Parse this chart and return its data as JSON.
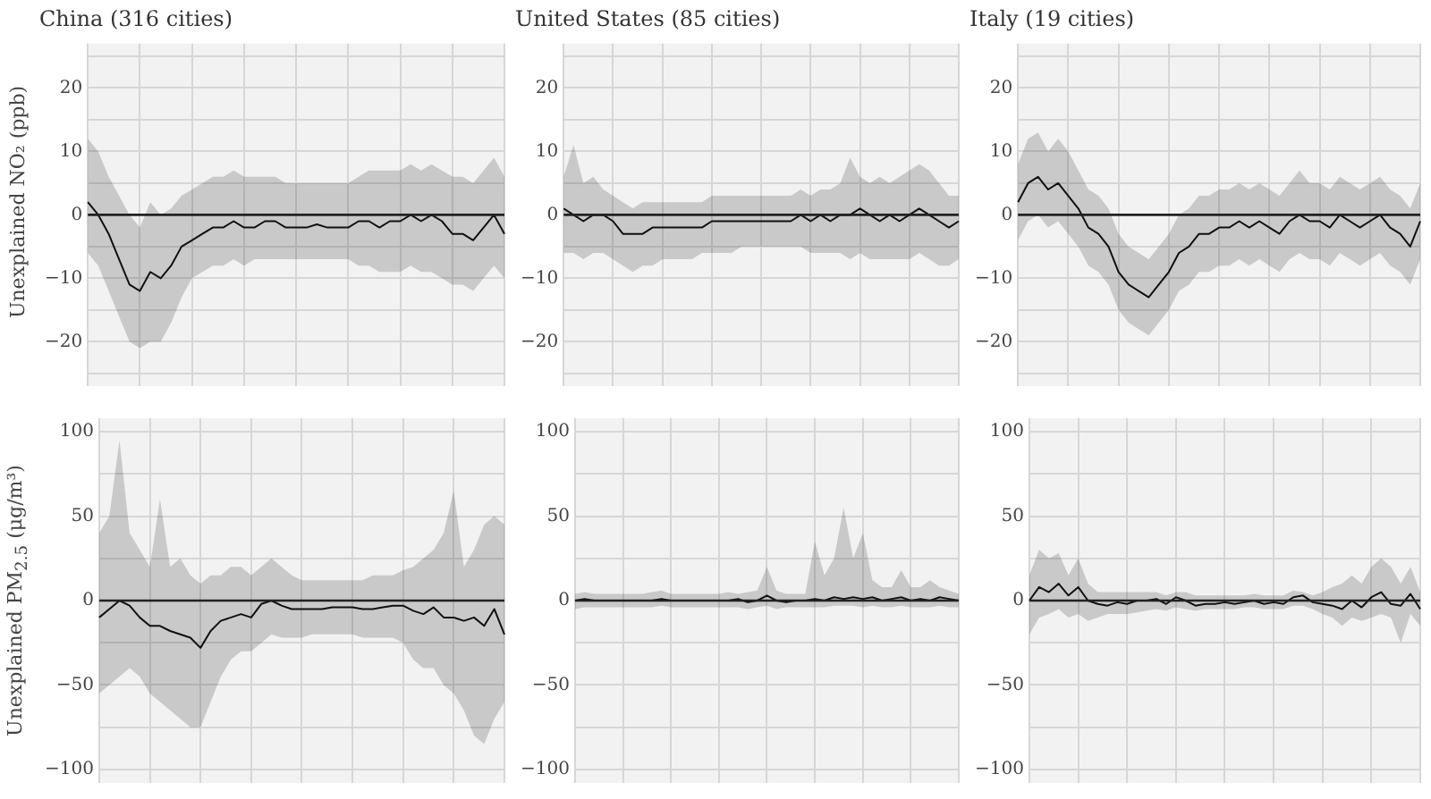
{
  "chart_data": [
    {
      "type": "line",
      "title": "China (316 cities)",
      "ylabel": "Unexplained NO₂ (ppb)",
      "categories": [
        null,
        null,
        null,
        null,
        null,
        null,
        null,
        null,
        null,
        null,
        null,
        null,
        null,
        null,
        null,
        null,
        null,
        null,
        null,
        null,
        null,
        null,
        null,
        null,
        null,
        null,
        null,
        null,
        null,
        null,
        null,
        null,
        null,
        null,
        null,
        null,
        null,
        null,
        null,
        null,
        null
      ],
      "ylim": [
        -27,
        27
      ],
      "yticks": [
        {
          "value": -25,
          "label": null
        },
        -20,
        {
          "value": -15,
          "label": null
        },
        -10,
        {
          "value": -5,
          "label": null
        },
        0,
        {
          "value": 5,
          "label": null
        },
        10,
        {
          "value": 15,
          "label": null
        },
        20,
        {
          "value": 25,
          "label": null
        }
      ],
      "grid": true,
      "tick_labels": "y",
      "ref_lines": [
        {
          "axis": "y",
          "value": 0,
          "color": "#222222"
        }
      ],
      "series": [
        {
          "color": "#111111",
          "values": [
            2,
            0,
            -3,
            -7,
            -11,
            -12,
            -9,
            -10,
            -8,
            -5,
            -4,
            -3,
            -2,
            -2,
            -1,
            -2,
            -2,
            -1,
            -1,
            -2,
            -2,
            -2,
            -1.5,
            -2,
            -2,
            -2,
            -1,
            -1,
            -2,
            -1,
            -1,
            0,
            -1,
            0,
            -1,
            -3,
            -3,
            -4,
            -2,
            0,
            -3
          ],
          "lower": [
            -6,
            -8,
            -12,
            -16,
            -20,
            -21,
            -20,
            -20,
            -17,
            -13,
            -10,
            -9,
            -8,
            -8,
            -7,
            -8,
            -7,
            -7,
            -7,
            -7,
            -7,
            -7,
            -7,
            -7,
            -7,
            -7,
            -8,
            -8,
            -9,
            -9,
            -9,
            -8,
            -9,
            -9,
            -10,
            -11,
            -11,
            -12,
            -10,
            -8,
            -10
          ],
          "upper": [
            12,
            10,
            6,
            3,
            0,
            -2,
            2,
            0,
            1,
            3,
            4,
            5,
            6,
            6,
            7,
            6,
            6,
            6,
            6,
            5,
            5,
            5,
            5,
            5,
            5,
            5,
            6,
            7,
            7,
            7,
            7,
            8,
            7,
            8,
            7,
            6,
            6,
            5,
            7,
            9,
            6
          ]
        }
      ]
    },
    {
      "type": "line",
      "title": "United States (85 cities)",
      "categories": [
        null,
        null,
        null,
        null,
        null,
        null,
        null,
        null,
        null,
        null,
        null,
        null,
        null,
        null,
        null,
        null,
        null,
        null,
        null,
        null,
        null,
        null,
        null,
        null,
        null,
        null,
        null,
        null,
        null,
        null,
        null,
        null,
        null,
        null,
        null,
        null,
        null,
        null,
        null,
        null,
        null
      ],
      "ylim": [
        -27,
        27
      ],
      "yticks": [
        {
          "value": -25,
          "label": null
        },
        -20,
        {
          "value": -15,
          "label": null
        },
        -10,
        {
          "value": -5,
          "label": null
        },
        0,
        {
          "value": 5,
          "label": null
        },
        10,
        {
          "value": 15,
          "label": null
        },
        20,
        {
          "value": 25,
          "label": null
        }
      ],
      "grid": true,
      "tick_labels": "y",
      "ref_lines": [
        {
          "axis": "y",
          "value": 0,
          "color": "#222222"
        }
      ],
      "series": [
        {
          "color": "#111111",
          "values": [
            1,
            0,
            -1,
            0,
            0,
            -1,
            -3,
            -3,
            -3,
            -2,
            -2,
            -2,
            -2,
            -2,
            -2,
            -1,
            -1,
            -1,
            -1,
            -1,
            -1,
            -1,
            -1,
            -1,
            0,
            -1,
            0,
            -1,
            0,
            0,
            1,
            0,
            -1,
            0,
            -1,
            0,
            1,
            0,
            -1,
            -2,
            -1
          ],
          "lower": [
            -6,
            -6,
            -7,
            -6,
            -6,
            -7,
            -8,
            -9,
            -8,
            -8,
            -7,
            -7,
            -7,
            -7,
            -6,
            -6,
            -6,
            -6,
            -5,
            -5,
            -5,
            -5,
            -5,
            -5,
            -5,
            -6,
            -6,
            -6,
            -6,
            -7,
            -6,
            -7,
            -7,
            -7,
            -7,
            -7,
            -6,
            -7,
            -8,
            -8,
            -7
          ],
          "upper": [
            6,
            11,
            5,
            6,
            4,
            3,
            2,
            1,
            2,
            2,
            2,
            2,
            2,
            2,
            2,
            3,
            3,
            3,
            3,
            3,
            3,
            3,
            3,
            3,
            4,
            3,
            4,
            4,
            5,
            9,
            6,
            5,
            6,
            5,
            6,
            7,
            8,
            7,
            5,
            3,
            3
          ]
        }
      ]
    },
    {
      "type": "line",
      "title": "Italy (19 cities)",
      "categories": [
        null,
        null,
        null,
        null,
        null,
        null,
        null,
        null,
        null,
        null,
        null,
        null,
        null,
        null,
        null,
        null,
        null,
        null,
        null,
        null,
        null,
        null,
        null,
        null,
        null,
        null,
        null,
        null,
        null,
        null,
        null,
        null,
        null,
        null,
        null,
        null,
        null,
        null,
        null,
        null,
        null
      ],
      "ylim": [
        -27,
        27
      ],
      "yticks": [
        {
          "value": -25,
          "label": null
        },
        -20,
        {
          "value": -15,
          "label": null
        },
        -10,
        {
          "value": -5,
          "label": null
        },
        0,
        {
          "value": 5,
          "label": null
        },
        10,
        {
          "value": 15,
          "label": null
        },
        20,
        {
          "value": 25,
          "label": null
        }
      ],
      "grid": true,
      "tick_labels": "y",
      "ref_lines": [
        {
          "axis": "y",
          "value": 0,
          "color": "#222222"
        }
      ],
      "series": [
        {
          "color": "#111111",
          "values": [
            2,
            5,
            6,
            4,
            5,
            3,
            1,
            -2,
            -3,
            -5,
            -9,
            -11,
            -12,
            -13,
            -11,
            -9,
            -6,
            -5,
            -3,
            -3,
            -2,
            -2,
            -1,
            -2,
            -1,
            -2,
            -3,
            -1,
            0,
            -1,
            -1,
            -2,
            0,
            -1,
            -2,
            -1,
            0,
            -2,
            -3,
            -5,
            -1
          ],
          "lower": [
            -4,
            -1,
            0,
            -2,
            -1,
            -3,
            -5,
            -8,
            -9,
            -11,
            -15,
            -17,
            -18,
            -19,
            -17,
            -15,
            -12,
            -11,
            -9,
            -9,
            -8,
            -8,
            -7,
            -8,
            -7,
            -8,
            -9,
            -7,
            -6,
            -7,
            -7,
            -8,
            -6,
            -7,
            -8,
            -7,
            -6,
            -8,
            -9,
            -11,
            -7
          ],
          "upper": [
            8,
            12,
            13,
            10,
            12,
            10,
            7,
            4,
            3,
            1,
            -3,
            -5,
            -6,
            -7,
            -5,
            -3,
            0,
            1,
            3,
            3,
            4,
            4,
            5,
            4,
            5,
            4,
            3,
            5,
            7,
            5,
            5,
            4,
            6,
            5,
            4,
            5,
            6,
            4,
            3,
            1,
            5
          ]
        }
      ]
    },
    {
      "type": "line",
      "ylabel": "Unexplained PM$_{2.5}$ (μg/m³)",
      "categories": [
        null,
        null,
        null,
        null,
        null,
        null,
        null,
        null,
        null,
        null,
        null,
        null,
        null,
        null,
        null,
        null,
        null,
        null,
        null,
        null,
        null,
        null,
        null,
        null,
        null,
        null,
        null,
        null,
        null,
        null,
        null,
        null,
        null,
        null,
        null,
        null,
        null,
        null,
        null,
        null,
        null
      ],
      "ylim": [
        -108,
        108
      ],
      "yticks": [
        -100,
        {
          "value": -75,
          "label": null
        },
        -50,
        {
          "value": -25,
          "label": null
        },
        0,
        {
          "value": 25,
          "label": null
        },
        50,
        {
          "value": 75,
          "label": null
        },
        100
      ],
      "grid": true,
      "tick_labels": "y",
      "ref_lines": [
        {
          "axis": "y",
          "value": 0,
          "color": "#222222"
        }
      ],
      "series": [
        {
          "color": "#111111",
          "values": [
            -10,
            -5,
            0,
            -3,
            -10,
            -15,
            -15,
            -18,
            -20,
            -22,
            -28,
            -18,
            -12,
            -10,
            -8,
            -10,
            -2,
            0,
            -3,
            -5,
            -5,
            -5,
            -5,
            -4,
            -4,
            -4,
            -5,
            -5,
            -4,
            -3,
            -3,
            -6,
            -8,
            -4,
            -10,
            -10,
            -12,
            -10,
            -15,
            -5,
            -20
          ],
          "lower": [
            -55,
            -50,
            -45,
            -40,
            -45,
            -55,
            -60,
            -65,
            -70,
            -75,
            -75,
            -60,
            -45,
            -35,
            -30,
            -30,
            -25,
            -20,
            -22,
            -22,
            -22,
            -20,
            -20,
            -20,
            -20,
            -20,
            -22,
            -22,
            -22,
            -22,
            -25,
            -35,
            -40,
            -40,
            -50,
            -55,
            -65,
            -80,
            -85,
            -70,
            -60
          ],
          "upper": [
            40,
            50,
            95,
            40,
            30,
            20,
            60,
            20,
            25,
            15,
            10,
            15,
            15,
            20,
            20,
            15,
            20,
            25,
            20,
            15,
            12,
            12,
            12,
            12,
            12,
            12,
            12,
            15,
            15,
            15,
            18,
            20,
            25,
            30,
            40,
            65,
            20,
            30,
            45,
            50,
            45
          ]
        }
      ]
    },
    {
      "type": "line",
      "categories": [
        null,
        null,
        null,
        null,
        null,
        null,
        null,
        null,
        null,
        null,
        null,
        null,
        null,
        null,
        null,
        null,
        null,
        null,
        null,
        null,
        null,
        null,
        null,
        null,
        null,
        null,
        null,
        null,
        null,
        null,
        null,
        null,
        null,
        null,
        null,
        null,
        null,
        null,
        null,
        null,
        null
      ],
      "ylim": [
        -108,
        108
      ],
      "yticks": [
        -100,
        {
          "value": -75,
          "label": null
        },
        -50,
        {
          "value": -25,
          "label": null
        },
        0,
        {
          "value": 25,
          "label": null
        },
        50,
        {
          "value": 75,
          "label": null
        },
        100
      ],
      "grid": true,
      "tick_labels": "y",
      "ref_lines": [
        {
          "axis": "y",
          "value": 0,
          "color": "#222222"
        }
      ],
      "series": [
        {
          "color": "#111111",
          "values": [
            0,
            1,
            0,
            0,
            0,
            0,
            0,
            0,
            0,
            1,
            0,
            0,
            0,
            0,
            0,
            0,
            0,
            1,
            -1,
            0,
            3,
            0,
            -1,
            0,
            0,
            1,
            0,
            2,
            1,
            2,
            1,
            2,
            0,
            1,
            2,
            0,
            1,
            0,
            2,
            1,
            0
          ],
          "lower": [
            -5,
            -4,
            -4,
            -4,
            -4,
            -4,
            -4,
            -4,
            -4,
            -3,
            -4,
            -4,
            -4,
            -4,
            -4,
            -4,
            -4,
            -4,
            -5,
            -4,
            -3,
            -5,
            -4,
            -4,
            -4,
            -4,
            -4,
            -3,
            -3,
            -3,
            -4,
            -3,
            -4,
            -4,
            -3,
            -4,
            -4,
            -4,
            -3,
            -4,
            -4
          ],
          "upper": [
            4,
            5,
            4,
            4,
            4,
            4,
            4,
            4,
            5,
            6,
            4,
            4,
            4,
            4,
            4,
            4,
            5,
            4,
            5,
            6,
            20,
            6,
            4,
            4,
            4,
            35,
            15,
            25,
            55,
            25,
            40,
            12,
            8,
            8,
            18,
            8,
            8,
            12,
            8,
            6,
            4
          ]
        }
      ]
    },
    {
      "type": "line",
      "categories": [
        null,
        null,
        null,
        null,
        null,
        null,
        null,
        null,
        null,
        null,
        null,
        null,
        null,
        null,
        null,
        null,
        null,
        null,
        null,
        null,
        null,
        null,
        null,
        null,
        null,
        null,
        null,
        null,
        null,
        null,
        null,
        null,
        null,
        null,
        null,
        null,
        null,
        null,
        null,
        null,
        null
      ],
      "ylim": [
        -108,
        108
      ],
      "yticks": [
        -100,
        {
          "value": -75,
          "label": null
        },
        -50,
        {
          "value": -25,
          "label": null
        },
        0,
        {
          "value": 25,
          "label": null
        },
        50,
        {
          "value": 75,
          "label": null
        },
        100
      ],
      "grid": true,
      "tick_labels": "y",
      "ref_lines": [
        {
          "axis": "y",
          "value": 0,
          "color": "#222222"
        }
      ],
      "series": [
        {
          "color": "#111111",
          "values": [
            0,
            8,
            5,
            10,
            3,
            8,
            0,
            -2,
            -3,
            -1,
            -2,
            0,
            0,
            1,
            -2,
            2,
            0,
            -3,
            -2,
            -2,
            -1,
            -2,
            -1,
            0,
            -2,
            -1,
            -2,
            2,
            3,
            -1,
            -2,
            -3,
            -5,
            0,
            -4,
            2,
            5,
            -2,
            -3,
            4,
            -5
          ],
          "lower": [
            -20,
            -10,
            -8,
            -5,
            -10,
            -8,
            -12,
            -10,
            -8,
            -8,
            -8,
            -7,
            -6,
            -5,
            -6,
            -4,
            -5,
            -6,
            -5,
            -5,
            -5,
            -5,
            -4,
            -4,
            -5,
            -5,
            -5,
            -3,
            -3,
            -5,
            -8,
            -10,
            -15,
            -10,
            -12,
            -10,
            -8,
            -10,
            -25,
            -8,
            -15
          ],
          "upper": [
            15,
            30,
            25,
            28,
            15,
            25,
            10,
            5,
            5,
            5,
            5,
            5,
            5,
            5,
            3,
            5,
            5,
            3,
            3,
            3,
            3,
            3,
            3,
            4,
            3,
            3,
            3,
            6,
            5,
            3,
            5,
            8,
            10,
            15,
            10,
            20,
            25,
            20,
            10,
            20,
            5
          ]
        }
      ]
    }
  ]
}
